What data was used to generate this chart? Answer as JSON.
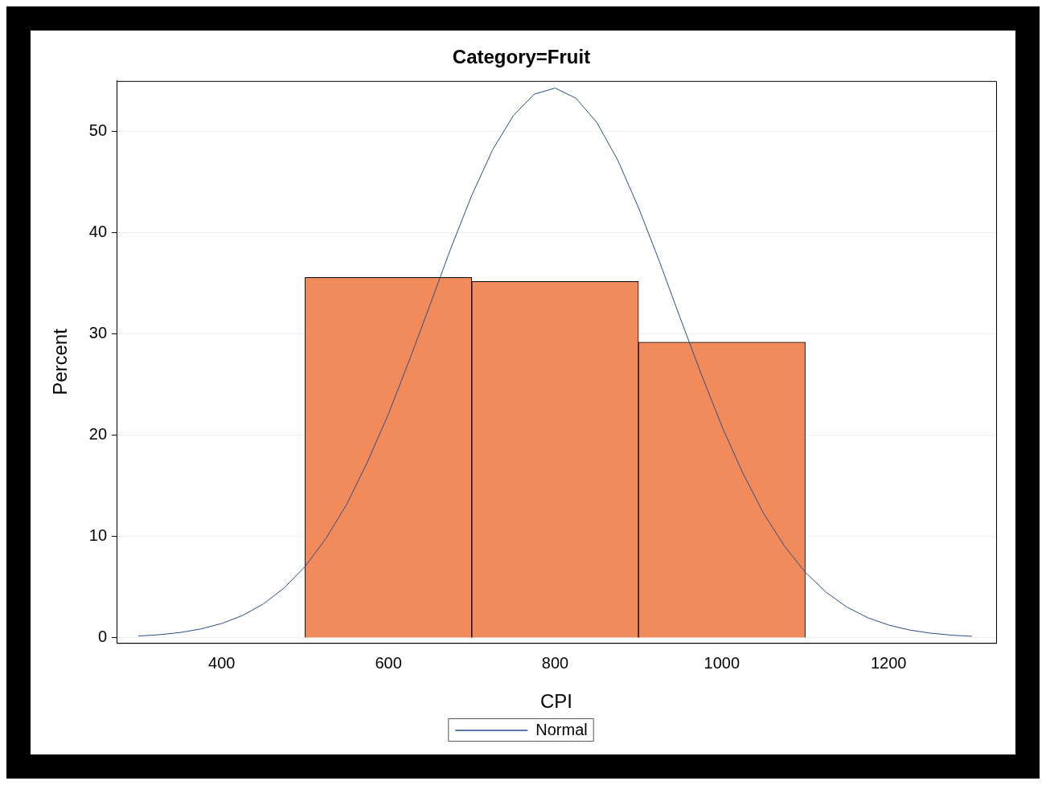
{
  "chart_data": {
    "type": "histogram",
    "title": "Category=Fruit",
    "xlabel": "CPI",
    "ylabel": "Percent",
    "bins": [
      500,
      700,
      900,
      1100
    ],
    "values": [
      35.6,
      35.2,
      29.2
    ],
    "color": "#f28b5c",
    "series": [
      {
        "name": "Normal",
        "type": "line",
        "color": "#2b4c8c",
        "x": [
          300,
          325,
          350,
          375,
          400,
          425,
          450,
          475,
          500,
          525,
          550,
          575,
          600,
          625,
          650,
          675,
          700,
          725,
          750,
          775,
          800,
          825,
          850,
          875,
          900,
          925,
          950,
          975,
          1000,
          1025,
          1050,
          1075,
          1100,
          1125,
          1150,
          1175,
          1200,
          1225,
          1250,
          1275,
          1300
        ],
        "values": [
          0.18,
          0.31,
          0.53,
          0.88,
          1.42,
          2.21,
          3.35,
          4.93,
          7.05,
          9.8,
          13.2,
          17.4,
          22.1,
          27.4,
          32.9,
          38.5,
          43.7,
          48.2,
          51.6,
          53.7,
          54.3,
          53.3,
          50.9,
          47.2,
          42.5,
          37.2,
          31.6,
          26.1,
          20.9,
          16.3,
          12.3,
          9.08,
          6.49,
          4.51,
          3.04,
          1.99,
          1.27,
          0.78,
          0.47,
          0.27,
          0.16
        ]
      }
    ],
    "xlim": [
      274,
      1329
    ],
    "xticks": [
      400,
      600,
      800,
      1000,
      1200
    ],
    "ylim": [
      -0.5,
      55
    ],
    "yticks": [
      0,
      10,
      20,
      30,
      40,
      50
    ],
    "grid": "y",
    "legend": "bottom",
    "marker": "none",
    "line_style": "solid"
  }
}
